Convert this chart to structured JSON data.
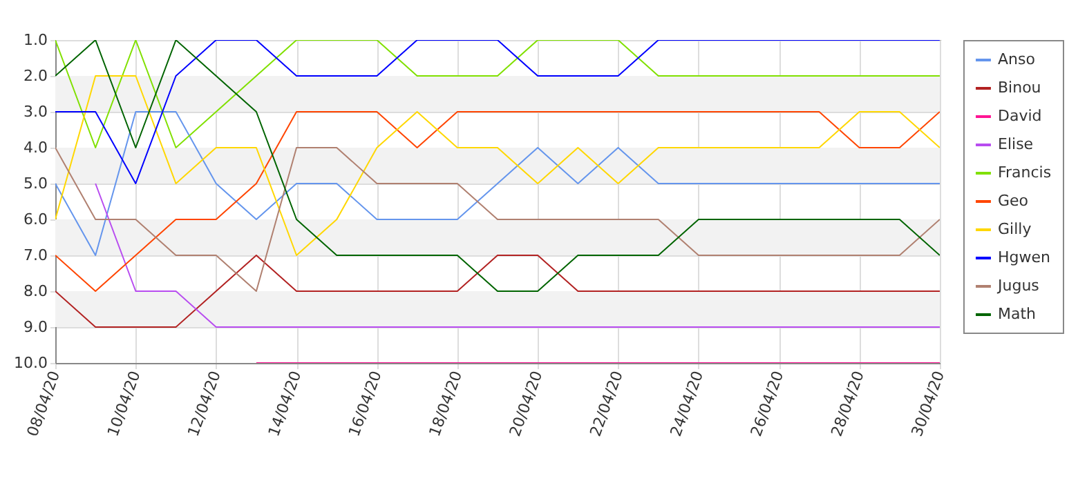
{
  "chart_data": {
    "type": "line",
    "x": [
      "--04-08",
      "--04-09",
      "--04-10",
      "--04-11",
      "--04-12",
      "--04-13",
      "--04-14",
      "--04-15",
      "--04-16",
      "--04-17",
      "--04-18",
      "--04-19",
      "--04-20",
      "--04-21",
      "--04-22",
      "--04-23",
      "--04-24",
      "--04-25",
      "--04-26",
      "--04-27",
      "--04-28",
      "--04-29",
      "--04-30"
    ],
    "series": [
      {
        "name": "Anso",
        "color": "#6495ed",
        "values": [
          5,
          7,
          3,
          3,
          5,
          6,
          5,
          5,
          6,
          6,
          6,
          5,
          4,
          5,
          4,
          5,
          5,
          5,
          5,
          5,
          5,
          5,
          5
        ]
      },
      {
        "name": "Binou",
        "color": "#b22222",
        "values": [
          8,
          9,
          9,
          9,
          8,
          7,
          8,
          8,
          8,
          8,
          8,
          7,
          7,
          8,
          8,
          8,
          8,
          8,
          8,
          8,
          8,
          8,
          8
        ]
      },
      {
        "name": "David",
        "color": "#ff1493",
        "values": [
          null,
          null,
          null,
          null,
          null,
          10,
          10,
          10,
          10,
          10,
          10,
          10,
          10,
          10,
          10,
          10,
          10,
          10,
          10,
          10,
          10,
          10,
          10
        ]
      },
      {
        "name": "Elise",
        "color": "#b84cf0",
        "values": [
          null,
          5,
          8,
          8,
          9,
          9,
          9,
          9,
          9,
          9,
          9,
          9,
          9,
          9,
          9,
          9,
          9,
          9,
          9,
          9,
          9,
          9,
          9
        ]
      },
      {
        "name": "Francis",
        "color": "#80e000",
        "values": [
          1,
          4,
          1,
          4,
          3,
          2,
          1,
          1,
          1,
          2,
          2,
          2,
          1,
          1,
          1,
          2,
          2,
          2,
          2,
          2,
          2,
          2,
          2
        ]
      },
      {
        "name": "Geo",
        "color": "#ff4500",
        "values": [
          7,
          8,
          7,
          6,
          6,
          5,
          3,
          3,
          3,
          4,
          3,
          3,
          3,
          3,
          3,
          3,
          3,
          3,
          3,
          3,
          4,
          4,
          3
        ]
      },
      {
        "name": "Gilly",
        "color": "#ffd700",
        "values": [
          6,
          2,
          2,
          5,
          4,
          4,
          7,
          6,
          4,
          3,
          4,
          4,
          5,
          4,
          5,
          4,
          4,
          4,
          4,
          4,
          3,
          3,
          4
        ]
      },
      {
        "name": "Hgwen",
        "color": "#0000ff",
        "values": [
          3,
          3,
          5,
          2,
          1,
          1,
          2,
          2,
          2,
          1,
          1,
          1,
          2,
          2,
          2,
          1,
          1,
          1,
          1,
          1,
          1,
          1,
          1
        ]
      },
      {
        "name": "Jugus",
        "color": "#b08070",
        "values": [
          4,
          6,
          6,
          7,
          7,
          8,
          4,
          4,
          5,
          5,
          5,
          6,
          6,
          6,
          6,
          6,
          7,
          7,
          7,
          7,
          7,
          7,
          6
        ]
      },
      {
        "name": "Math",
        "color": "#006400",
        "values": [
          2,
          1,
          4,
          1,
          2,
          3,
          6,
          7,
          7,
          7,
          7,
          8,
          8,
          7,
          7,
          7,
          6,
          6,
          6,
          6,
          6,
          6,
          7
        ]
      }
    ],
    "xlim": [
      "--04-08",
      "--04-30"
    ],
    "xticks": [
      {
        "value": "--04-08",
        "label": "08/04/20"
      },
      {
        "value": "--04-10",
        "label": "10/04/20"
      },
      {
        "value": "--04-12",
        "label": "12/04/20"
      },
      {
        "value": "--04-14",
        "label": "14/04/20"
      },
      {
        "value": "--04-16",
        "label": "16/04/20"
      },
      {
        "value": "--04-18",
        "label": "18/04/20"
      },
      {
        "value": "--04-20",
        "label": "20/04/20"
      },
      {
        "value": "--04-22",
        "label": "22/04/20"
      },
      {
        "value": "--04-24",
        "label": "24/04/20"
      },
      {
        "value": "--04-26",
        "label": "26/04/20"
      },
      {
        "value": "--04-28",
        "label": "28/04/20"
      },
      {
        "value": "--04-30",
        "label": "30/04/20"
      }
    ],
    "ylim": [
      10,
      1
    ],
    "yticks": [
      {
        "value": 1,
        "label": "1.0"
      },
      {
        "value": 2,
        "label": "2.0"
      },
      {
        "value": 3,
        "label": "3.0"
      },
      {
        "value": 4,
        "label": "4.0"
      },
      {
        "value": 5,
        "label": "5.0"
      },
      {
        "value": 6,
        "label": "6.0"
      },
      {
        "value": 7,
        "label": "7.0"
      },
      {
        "value": 8,
        "label": "8.0"
      },
      {
        "value": 9,
        "label": "9.0"
      },
      {
        "value": 10,
        "label": "10.0"
      }
    ],
    "bands": [
      {
        "axis": "y",
        "from": 2,
        "to": 3,
        "color": "#f2f2f2"
      },
      {
        "axis": "y",
        "from": 4,
        "to": 5,
        "color": "#f2f2f2"
      },
      {
        "axis": "y",
        "from": 6,
        "to": 7,
        "color": "#f2f2f2"
      },
      {
        "axis": "y",
        "from": 8,
        "to": 9,
        "color": "#f2f2f2"
      }
    ],
    "grid": true,
    "legend": "right",
    "marker": "none",
    "line_style": "solid"
  }
}
